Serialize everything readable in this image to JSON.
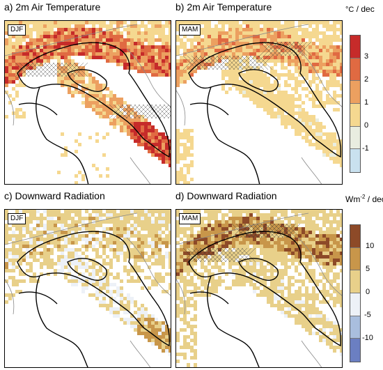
{
  "panels": [
    {
      "title": "a) 2m Air Temperature",
      "season": "DJF"
    },
    {
      "title": "b) 2m Air Temperature",
      "season": "MAM"
    },
    {
      "title": "c) Downward Radiation",
      "season": "DJF"
    },
    {
      "title": "d) Downward Radiation",
      "season": "MAM"
    }
  ],
  "temperature_colorbar": {
    "unit_prefix": "°C",
    "unit_suffix": " / dec",
    "ticks": [
      "3",
      "2",
      "1",
      "0",
      "-1"
    ],
    "colors": [
      "#c62b2a",
      "#e06a42",
      "#eca060",
      "#f5d890",
      "#e9ede0",
      "#c9e1ef"
    ]
  },
  "radiation_colorbar": {
    "unit_prefix": "Wm",
    "unit_exp": "-2",
    "unit_suffix": " / dec",
    "ticks": [
      "10",
      "5",
      "0",
      "-5",
      "-10"
    ],
    "colors": [
      "#8d4a28",
      "#c8964a",
      "#e8d08a",
      "#edf1f7",
      "#a9bede",
      "#6b7fc2"
    ]
  }
}
